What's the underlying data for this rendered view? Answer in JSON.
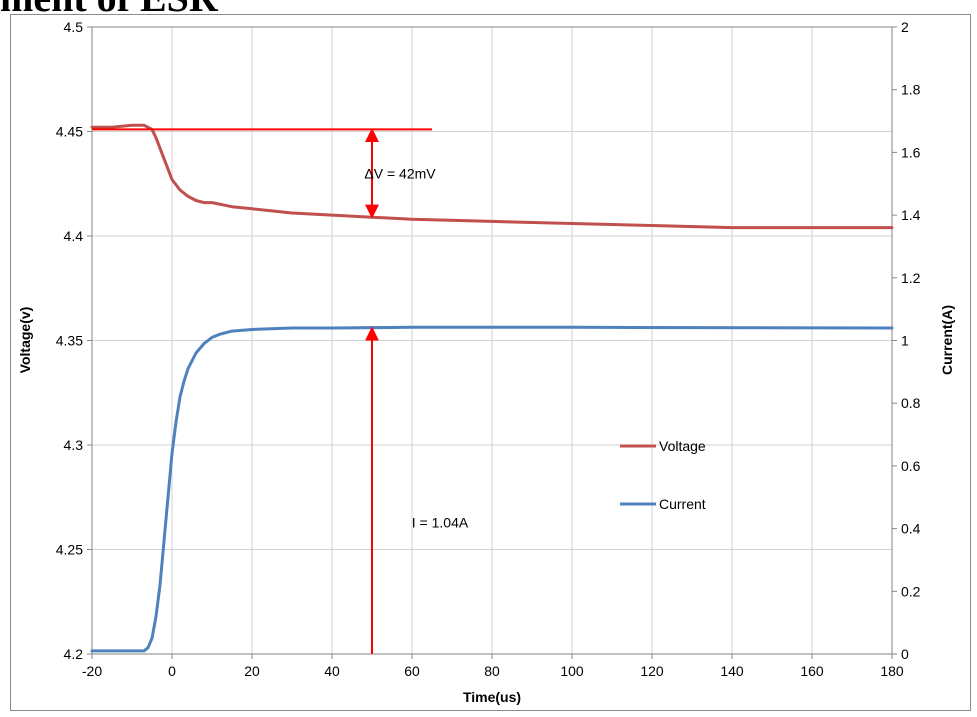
{
  "page_title_fragment": "ment of ESR",
  "chart_data": {
    "type": "line",
    "xlabel": "Time(us)",
    "ylabel_left": "Voltage(v)",
    "ylabel_right": "Current(A)",
    "xlim": [
      -20,
      180
    ],
    "ylim_left": [
      4.2,
      4.5
    ],
    "ylim_right": [
      0,
      2
    ],
    "x_ticks": [
      "-20",
      "0",
      "20",
      "40",
      "60",
      "80",
      "100",
      "120",
      "140",
      "160",
      "180"
    ],
    "y_left_ticks": [
      "4.2",
      "4.25",
      "4.3",
      "4.35",
      "4.4",
      "4.45",
      "4.5"
    ],
    "y_right_ticks": [
      "0",
      "0.2",
      "0.4",
      "0.6",
      "0.8",
      "1",
      "1.2",
      "1.4",
      "1.6",
      "1.8",
      "2"
    ],
    "grid": true,
    "legend_position": "center-right",
    "series": [
      {
        "name": "Voltage",
        "axis": "left",
        "color": "#C0504D",
        "x": [
          -20,
          -15,
          -10,
          -7,
          -5,
          -4,
          -3,
          -2,
          -1,
          0,
          2,
          4,
          6,
          8,
          10,
          15,
          20,
          30,
          40,
          50,
          60,
          80,
          100,
          120,
          140,
          160,
          180
        ],
        "y": [
          4.452,
          4.452,
          4.453,
          4.453,
          4.451,
          4.447,
          4.442,
          4.437,
          4.432,
          4.427,
          4.422,
          4.419,
          4.417,
          4.416,
          4.416,
          4.414,
          4.413,
          4.411,
          4.41,
          4.409,
          4.408,
          4.407,
          4.406,
          4.405,
          4.404,
          4.404,
          4.404
        ]
      },
      {
        "name": "Current",
        "axis": "right",
        "color": "#4F81BD",
        "x": [
          -20,
          -10,
          -7,
          -6,
          -5,
          -4,
          -3,
          -2,
          -1,
          0,
          1,
          2,
          3,
          4,
          6,
          8,
          10,
          12,
          15,
          20,
          30,
          40,
          60,
          100,
          180
        ],
        "y": [
          0.01,
          0.01,
          0.01,
          0.02,
          0.05,
          0.12,
          0.22,
          0.36,
          0.5,
          0.64,
          0.74,
          0.82,
          0.87,
          0.91,
          0.96,
          0.99,
          1.01,
          1.02,
          1.03,
          1.035,
          1.04,
          1.04,
          1.042,
          1.042,
          1.04
        ]
      }
    ],
    "annotations": [
      {
        "name": "delta-v",
        "text": "ΔV = 42mV",
        "color": "#FF0000",
        "reference_line": {
          "x": [
            -20,
            65
          ],
          "y": 4.451
        },
        "arrow": {
          "x": 50,
          "y_from": 4.451,
          "y_to": 4.409
        },
        "label_at": {
          "x": 57,
          "y": 4.43
        }
      },
      {
        "name": "current",
        "text": "I = 1.04A",
        "color": "#FF0000",
        "arrow": {
          "x": 50,
          "y_from": 0,
          "y_to": 1.04
        },
        "label_at": {
          "x": 67,
          "y": 0.42
        }
      }
    ]
  }
}
